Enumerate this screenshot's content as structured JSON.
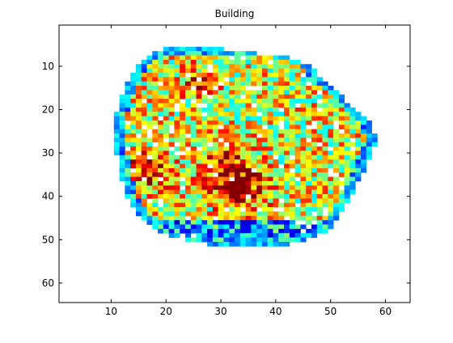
{
  "figure": {
    "title": "Building",
    "background": "#ffffff",
    "axes_color": "#000000"
  },
  "chart_data": {
    "type": "heatmap",
    "title": "Building",
    "xlabel": "",
    "ylabel": "",
    "xlim": [
      0.5,
      64.5
    ],
    "ylim": [
      0.5,
      64.5
    ],
    "y_reversed": true,
    "xticks": [
      10,
      20,
      30,
      40,
      50,
      60
    ],
    "yticks": [
      10,
      20,
      30,
      40,
      50,
      60
    ],
    "colormap": "jet",
    "background_value": "NaN (white)",
    "grid": false,
    "rows": {
      "6": [
        "                            ",
        29,
        15
      ],
      "7": [
        28,
        58
      ],
      "8": [
        26,
        60
      ],
      "9": [
        24,
        62
      ]
    },
    "mask_extents": [
      [
        6,
        20,
        30
      ],
      [
        7,
        18,
        36
      ],
      [
        8,
        17,
        42
      ],
      [
        9,
        16,
        44
      ],
      [
        10,
        15,
        46
      ],
      [
        11,
        15,
        47
      ],
      [
        12,
        14,
        47
      ],
      [
        13,
        14,
        48
      ],
      [
        14,
        13,
        49
      ],
      [
        15,
        13,
        50
      ],
      [
        16,
        13,
        51
      ],
      [
        17,
        12,
        52
      ],
      [
        18,
        12,
        52
      ],
      [
        19,
        12,
        53
      ],
      [
        20,
        12,
        54
      ],
      [
        21,
        11,
        55
      ],
      [
        22,
        11,
        56
      ],
      [
        23,
        11,
        57
      ],
      [
        24,
        11,
        57
      ],
      [
        25,
        11,
        57
      ],
      [
        26,
        11,
        58
      ],
      [
        27,
        11,
        58
      ],
      [
        28,
        11,
        58
      ],
      [
        29,
        11,
        57
      ],
      [
        30,
        11,
        57
      ],
      [
        31,
        12,
        57
      ],
      [
        32,
        12,
        56
      ],
      [
        33,
        12,
        56
      ],
      [
        34,
        12,
        56
      ],
      [
        35,
        12,
        55
      ],
      [
        36,
        12,
        55
      ],
      [
        37,
        13,
        54
      ],
      [
        38,
        13,
        54
      ],
      [
        39,
        13,
        54
      ],
      [
        40,
        13,
        53
      ],
      [
        41,
        14,
        53
      ],
      [
        42,
        14,
        52
      ],
      [
        43,
        15,
        52
      ],
      [
        44,
        15,
        51
      ],
      [
        45,
        16,
        51
      ],
      [
        46,
        17,
        50
      ],
      [
        47,
        18,
        50
      ],
      [
        48,
        19,
        49
      ],
      [
        49,
        21,
        47
      ],
      [
        50,
        24,
        45
      ],
      [
        51,
        28,
        42
      ]
    ]
  }
}
